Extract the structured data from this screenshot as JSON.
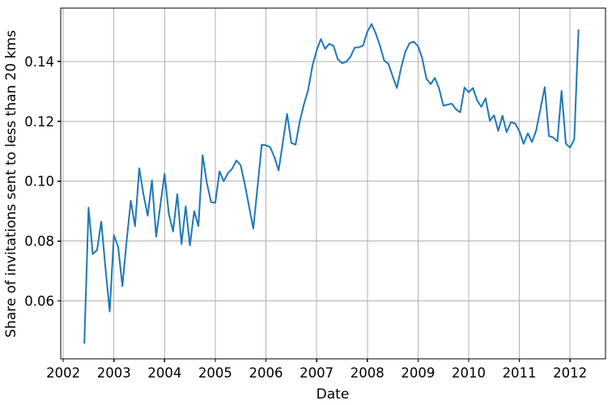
{
  "chart_data": {
    "type": "line",
    "title": "",
    "xlabel": "Date",
    "ylabel": "Share of invitations sent to less than 20 kms",
    "legend": null,
    "grid": true,
    "grid_color": "#b2b2b2",
    "line_color": "#1f77b4",
    "background_color": "#ffffff",
    "x_ticks": [
      2002,
      2003,
      2004,
      2005,
      2006,
      2007,
      2008,
      2009,
      2010,
      2011,
      2012
    ],
    "y_ticks": [
      0.06,
      0.08,
      0.1,
      0.12,
      0.14
    ],
    "xlim": [
      2001.95,
      2012.7
    ],
    "ylim": [
      0.0407,
      0.1578
    ],
    "series": [
      {
        "name": "Share of invitations sent to less than 20 kms",
        "freq": "monthly",
        "start": "2002-06",
        "start_year": 2002,
        "start_month": 6,
        "end": "2012-03",
        "values": [
          0.046,
          0.0912,
          0.0757,
          0.077,
          0.0865,
          0.071,
          0.0565,
          0.082,
          0.078,
          0.065,
          0.08,
          0.0935,
          0.085,
          0.1043,
          0.0955,
          0.0885,
          0.1003,
          0.0815,
          0.092,
          0.1025,
          0.089,
          0.0832,
          0.0957,
          0.079,
          0.0916,
          0.0786,
          0.09,
          0.085,
          0.1087,
          0.0995,
          0.093,
          0.0928,
          0.1033,
          0.1,
          0.1027,
          0.1042,
          0.1069,
          0.1054,
          0.0989,
          0.0915,
          0.0842,
          0.098,
          0.1122,
          0.112,
          0.1114,
          0.108,
          0.1036,
          0.113,
          0.1225,
          0.1128,
          0.1122,
          0.12,
          0.1257,
          0.1305,
          0.1385,
          0.1437,
          0.1475,
          0.1442,
          0.1459,
          0.1452,
          0.1408,
          0.1394,
          0.1399,
          0.1415,
          0.1446,
          0.1447,
          0.1453,
          0.1499,
          0.1525,
          0.1493,
          0.1452,
          0.1403,
          0.1392,
          0.135,
          0.1311,
          0.1379,
          0.1432,
          0.1461,
          0.1466,
          0.1451,
          0.141,
          0.1342,
          0.1324,
          0.1345,
          0.131,
          0.1252,
          0.1256,
          0.1259,
          0.124,
          0.123,
          0.1313,
          0.1297,
          0.1311,
          0.127,
          0.1248,
          0.1277,
          0.1202,
          0.122,
          0.1168,
          0.1219,
          0.1164,
          0.1197,
          0.1193,
          0.1167,
          0.1125,
          0.116,
          0.1131,
          0.117,
          0.1243,
          0.1314,
          0.1151,
          0.1146,
          0.1133,
          0.1302,
          0.1125,
          0.1112,
          0.114,
          0.1505
        ]
      }
    ]
  }
}
